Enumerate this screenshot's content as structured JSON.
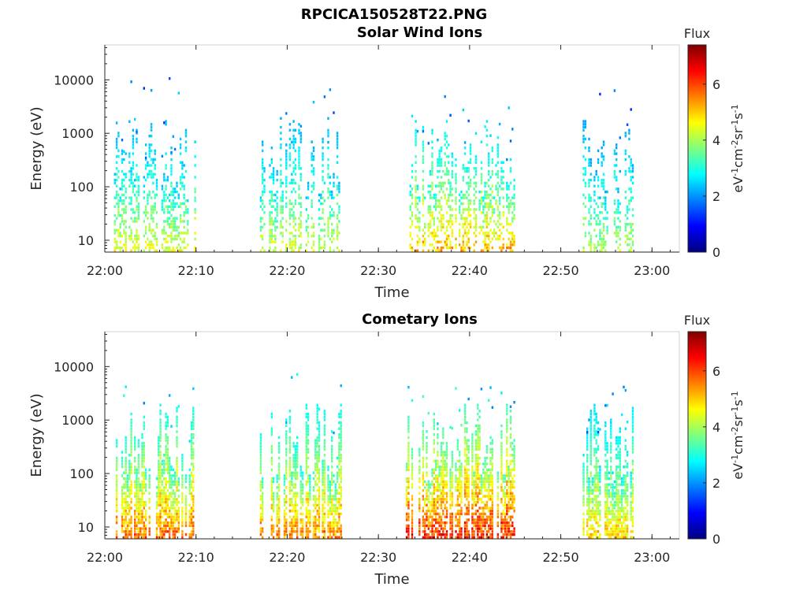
{
  "figure": {
    "title": "RPCICA150528T22.PNG"
  },
  "colormap": [
    "#00007f",
    "#0000ff",
    "#007fff",
    "#00ffff",
    "#7fff7f",
    "#ffff00",
    "#ff7f00",
    "#ff0000",
    "#7f0000"
  ],
  "chart_data": [
    {
      "type": "heatmap",
      "title": "Solar Wind Ions",
      "xlabel": "Time",
      "ylabel": "Energy (eV)",
      "y_scale": "log",
      "ylim": [
        6,
        45000
      ],
      "xlim": [
        "22:00",
        "23:03"
      ],
      "x_ticks": [
        "22:00",
        "22:10",
        "22:20",
        "22:30",
        "22:40",
        "22:50",
        "23:00"
      ],
      "y_ticks": [
        10,
        100,
        1000,
        10000
      ],
      "y_tick_labels": [
        "10",
        "100",
        "1000",
        "10000"
      ],
      "colorbar": {
        "label": "Flux",
        "units": "eV-1cm-2sr-1s-1",
        "range": [
          0,
          7.4
        ],
        "ticks": [
          0,
          2,
          4,
          6
        ],
        "tick_labels": [
          "0",
          "2",
          "4",
          "6"
        ]
      },
      "activity_bursts": [
        {
          "start": "22:01",
          "end": "22:10",
          "max_flux": 5.0,
          "energy_low": 6,
          "energy_high": 10000
        },
        {
          "start": "22:17",
          "end": "22:26",
          "max_flux": 4.9,
          "energy_low": 6,
          "energy_high": 8000
        },
        {
          "start": "22:33",
          "end": "22:45",
          "max_flux": 5.8,
          "energy_low": 6,
          "energy_high": 6000
        },
        {
          "start": "22:52",
          "end": "22:58",
          "max_flux": 4.6,
          "energy_low": 6,
          "energy_high": 10000
        }
      ]
    },
    {
      "type": "heatmap",
      "title": "Cometary Ions",
      "xlabel": "Time",
      "ylabel": "Energy (eV)",
      "y_scale": "log",
      "ylim": [
        6,
        45000
      ],
      "xlim": [
        "22:00",
        "23:03"
      ],
      "x_ticks": [
        "22:00",
        "22:10",
        "22:20",
        "22:30",
        "22:40",
        "22:50",
        "23:00"
      ],
      "y_ticks": [
        10,
        100,
        1000,
        10000
      ],
      "y_tick_labels": [
        "10",
        "100",
        "1000",
        "10000"
      ],
      "colorbar": {
        "label": "Flux",
        "units": "eV-1cm-2sr-1s-1",
        "range": [
          0,
          7.4
        ],
        "ticks": [
          0,
          2,
          4,
          6
        ],
        "tick_labels": [
          "0",
          "2",
          "4",
          "6"
        ]
      },
      "activity_bursts": [
        {
          "start": "22:01",
          "end": "22:10",
          "max_flux": 6.4,
          "energy_low": 6,
          "energy_high": 7000
        },
        {
          "start": "22:17",
          "end": "22:26",
          "max_flux": 6.2,
          "energy_low": 6,
          "energy_high": 7000
        },
        {
          "start": "22:33",
          "end": "22:45",
          "max_flux": 7.1,
          "energy_low": 6,
          "energy_high": 5000
        },
        {
          "start": "22:52",
          "end": "22:58",
          "max_flux": 5.6,
          "energy_low": 6,
          "energy_high": 5000
        }
      ]
    }
  ]
}
